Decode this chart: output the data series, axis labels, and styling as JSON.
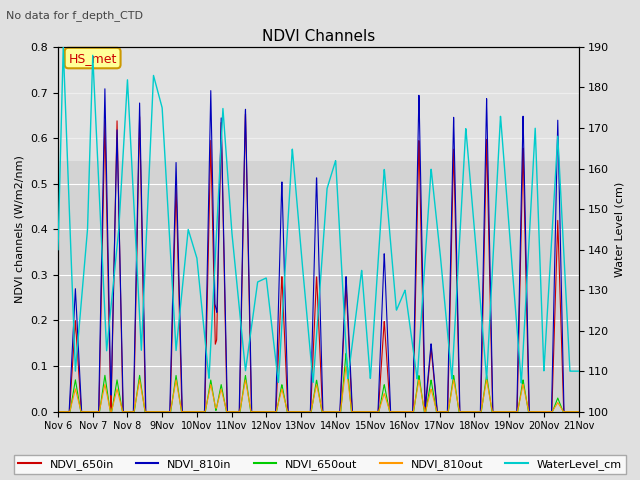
{
  "title": "NDVI Channels",
  "subtitle": "No data for f_depth_CTD",
  "ylabel_left": "NDVI channels (W/m2/nm)",
  "ylabel_right": "Water Level (cm)",
  "ylim_left": [
    0.0,
    0.8
  ],
  "ylim_right": [
    100,
    190
  ],
  "annotation": "HS_met",
  "bg_color": "#e0e0e0",
  "plot_bg_upper_color": "#d0d0d0",
  "plot_bg_lower_color": "#e8e8e8",
  "grid_color": "#ffffff",
  "series_colors": {
    "NDVI_650in": "#cc0000",
    "NDVI_810in": "#0000bb",
    "NDVI_650out": "#00cc00",
    "NDVI_810out": "#ff9900",
    "WaterLevel_cm": "#00cccc"
  },
  "figsize": [
    6.4,
    4.8
  ],
  "dpi": 100
}
